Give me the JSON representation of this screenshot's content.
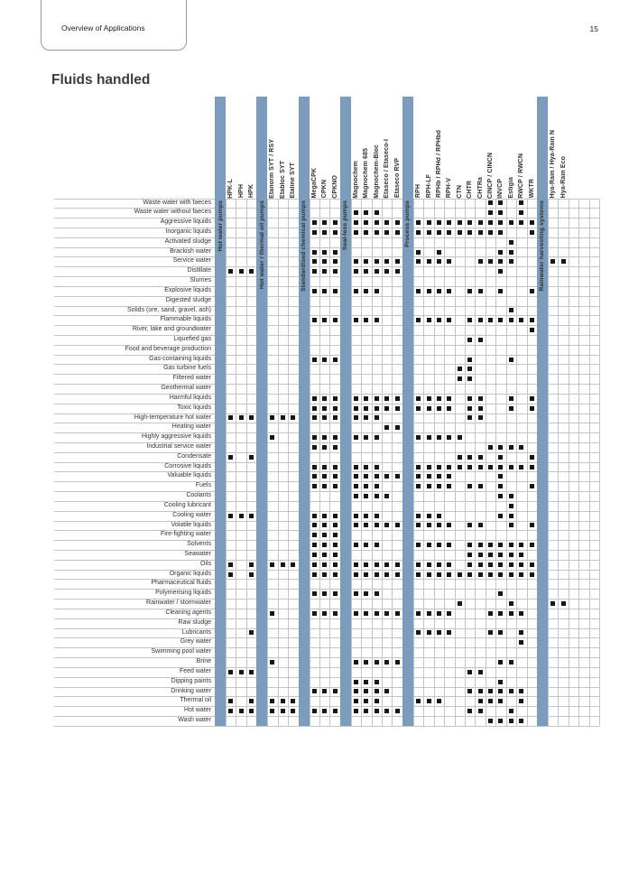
{
  "header": {
    "tab_label": "Overview of Applications",
    "page_number": "15"
  },
  "title": "Fluids handled",
  "colors": {
    "band": "#7b9cbc",
    "mark": "#161616",
    "grid": "#c4c4c4"
  },
  "table": {
    "groups": [
      {
        "label": "Hot water pumps",
        "columns": [
          "HPK-L",
          "HPH",
          "HPK"
        ]
      },
      {
        "label": "Hot water / thermal oil pumps",
        "columns": [
          "Etanorm SYT / RSY",
          "Etabloc SYT",
          "Etaline SYT"
        ]
      },
      {
        "label": "Standardised chemical pumps",
        "columns": [
          "MegaCPK",
          "CPKN",
          "CPKNO"
        ]
      },
      {
        "label": "Seal-less pumps",
        "columns": [
          "Magnochem",
          "Magnochem 685",
          "Magnochem-Bloc",
          "Etaseco / Etaseco-I",
          "Etaseco RVP"
        ]
      },
      {
        "label": "Process pumps",
        "columns": [
          "RPH",
          "RPH-LF",
          "RPHb / RPHd / RPHbd",
          "RPH-V",
          "CTN",
          "CHTR",
          "CHTRa",
          "CINCP / CINCN",
          "INVCP",
          "Estigia",
          "RWCP / RWCN",
          "WKTR"
        ]
      },
      {
        "label": "Rainwater harvesting systems",
        "columns": [
          "Hya-Rain / Hya-Rain N",
          "Hya-Rain Eco"
        ]
      }
    ],
    "trailing_empty_columns": 3,
    "rows": [
      {
        "label": "Waste water with faeces",
        "marks": [
          22,
          23,
          25
        ]
      },
      {
        "label": "Waste water without faeces",
        "marks": [
          10,
          11,
          12,
          22,
          23,
          25
        ]
      },
      {
        "label": "Aggressive liquids",
        "marks": [
          7,
          8,
          9,
          10,
          11,
          12,
          13,
          14,
          15,
          16,
          17,
          18,
          19,
          20,
          21,
          22,
          23,
          24,
          25,
          26
        ]
      },
      {
        "label": "Inorganic liquids",
        "marks": [
          7,
          8,
          9,
          10,
          11,
          12,
          13,
          14,
          15,
          16,
          17,
          18,
          19,
          20,
          21,
          22,
          23,
          26
        ]
      },
      {
        "label": "Activated sludge",
        "marks": [
          24
        ]
      },
      {
        "label": "Brackish water",
        "marks": [
          7,
          8,
          9,
          15,
          17,
          23,
          24
        ]
      },
      {
        "label": "Service water",
        "marks": [
          7,
          8,
          9,
          10,
          11,
          12,
          13,
          14,
          15,
          16,
          17,
          18,
          21,
          22,
          23,
          24,
          27,
          28
        ]
      },
      {
        "label": "Distillate",
        "marks": [
          1,
          2,
          3,
          7,
          8,
          9,
          10,
          11,
          12,
          13,
          14,
          23
        ]
      },
      {
        "label": "Slurries",
        "marks": []
      },
      {
        "label": "Explosive liquids",
        "marks": [
          7,
          8,
          9,
          10,
          11,
          12,
          15,
          16,
          17,
          18,
          20,
          21,
          23,
          26
        ]
      },
      {
        "label": "Digested sludge",
        "marks": []
      },
      {
        "label": "Solids (ore, sand, gravel, ash)",
        "marks": [
          24
        ]
      },
      {
        "label": "Flammable liquids",
        "marks": [
          7,
          8,
          9,
          10,
          11,
          12,
          15,
          16,
          17,
          18,
          20,
          21,
          22,
          23,
          24,
          25,
          26
        ]
      },
      {
        "label": "River, lake and groundwater",
        "marks": [
          26
        ]
      },
      {
        "label": "Liquefied gas",
        "marks": [
          20,
          21
        ]
      },
      {
        "label": "Food and beverage production",
        "marks": []
      },
      {
        "label": "Gas-containing liquids",
        "marks": [
          7,
          8,
          9,
          20,
          24
        ]
      },
      {
        "label": "Gas turbine fuels",
        "marks": [
          19,
          20
        ]
      },
      {
        "label": "Filtered water",
        "marks": [
          19,
          20
        ]
      },
      {
        "label": "Geothermal water",
        "marks": []
      },
      {
        "label": "Harmful liquids",
        "marks": [
          7,
          8,
          9,
          10,
          11,
          12,
          13,
          14,
          15,
          16,
          17,
          18,
          20,
          21,
          24,
          26
        ]
      },
      {
        "label": "Toxic liquids",
        "marks": [
          7,
          8,
          9,
          10,
          11,
          12,
          13,
          14,
          15,
          16,
          17,
          18,
          20,
          21,
          24,
          26
        ]
      },
      {
        "label": "High-temperature hot water",
        "marks": [
          1,
          2,
          3,
          4,
          5,
          6,
          7,
          8,
          9,
          10,
          11,
          12,
          20,
          21
        ]
      },
      {
        "label": "Heating water",
        "marks": [
          13,
          14
        ]
      },
      {
        "label": "Highly aggressive liquids",
        "marks": [
          4,
          7,
          8,
          9,
          10,
          11,
          12,
          15,
          16,
          17,
          18,
          19
        ]
      },
      {
        "label": "Industrial service water",
        "marks": [
          7,
          8,
          9,
          22,
          23,
          24,
          25
        ]
      },
      {
        "label": "Condensate",
        "marks": [
          1,
          3,
          19,
          20,
          21,
          23,
          26
        ]
      },
      {
        "label": "Corrosive liquids",
        "marks": [
          7,
          8,
          9,
          10,
          11,
          12,
          15,
          16,
          17,
          18,
          19,
          20,
          21,
          22,
          23,
          24,
          25,
          26
        ]
      },
      {
        "label": "Valuable liquids",
        "marks": [
          7,
          8,
          9,
          10,
          11,
          12,
          13,
          14,
          15,
          16,
          17,
          18,
          23
        ]
      },
      {
        "label": "Fuels",
        "marks": [
          7,
          8,
          9,
          10,
          11,
          12,
          15,
          16,
          17,
          18,
          20,
          21,
          23,
          26
        ]
      },
      {
        "label": "Coolants",
        "marks": [
          10,
          11,
          12,
          13,
          23,
          24
        ]
      },
      {
        "label": "Cooling lubricant",
        "marks": [
          24
        ]
      },
      {
        "label": "Cooling water",
        "marks": [
          1,
          2,
          3,
          7,
          8,
          9,
          10,
          11,
          12,
          15,
          16,
          17,
          23,
          24
        ]
      },
      {
        "label": "Volatile liquids",
        "marks": [
          7,
          8,
          9,
          10,
          11,
          12,
          13,
          14,
          15,
          16,
          17,
          18,
          20,
          21,
          24,
          26
        ]
      },
      {
        "label": "Fire-fighting water",
        "marks": [
          7,
          8,
          9
        ]
      },
      {
        "label": "Solvents",
        "marks": [
          7,
          8,
          9,
          10,
          11,
          12,
          15,
          16,
          17,
          18,
          20,
          21,
          22,
          23,
          24,
          25,
          26
        ]
      },
      {
        "label": "Seawater",
        "marks": [
          7,
          8,
          9,
          20,
          21,
          22,
          23,
          24,
          25
        ]
      },
      {
        "label": "Oils",
        "marks": [
          1,
          3,
          4,
          5,
          6,
          7,
          8,
          9,
          10,
          11,
          12,
          13,
          14,
          15,
          16,
          17,
          18,
          20,
          21,
          22,
          23,
          24,
          25,
          26
        ]
      },
      {
        "label": "Organic liquids",
        "marks": [
          1,
          3,
          7,
          8,
          9,
          10,
          11,
          12,
          13,
          14,
          15,
          16,
          17,
          18,
          19,
          20,
          21,
          22,
          23,
          24,
          25,
          26
        ]
      },
      {
        "label": "Pharmaceutical fluids",
        "marks": []
      },
      {
        "label": "Polymerising liquids",
        "marks": [
          7,
          8,
          9,
          10,
          11,
          12,
          23
        ]
      },
      {
        "label": "Rainwater / stormwater",
        "marks": [
          19,
          24,
          27,
          28
        ]
      },
      {
        "label": "Cleaning agents",
        "marks": [
          4,
          7,
          8,
          9,
          10,
          11,
          12,
          13,
          14,
          15,
          16,
          17,
          18,
          22,
          23,
          24,
          25
        ]
      },
      {
        "label": "Raw sludge",
        "marks": []
      },
      {
        "label": "Lubricants",
        "marks": [
          3,
          15,
          16,
          17,
          18,
          22,
          23,
          25
        ]
      },
      {
        "label": "Grey water",
        "marks": [
          25
        ]
      },
      {
        "label": "Swimming pool water",
        "marks": []
      },
      {
        "label": "Brine",
        "marks": [
          4,
          10,
          11,
          12,
          13,
          14,
          23,
          24
        ]
      },
      {
        "label": "Feed water",
        "marks": [
          1,
          2,
          3,
          20,
          21
        ]
      },
      {
        "label": "Dipping paints",
        "marks": [
          10,
          11,
          12,
          23
        ]
      },
      {
        "label": "Drinking water",
        "marks": [
          7,
          8,
          9,
          10,
          11,
          12,
          13,
          20,
          21,
          22,
          23,
          24,
          25
        ]
      },
      {
        "label": "Thermal oil",
        "marks": [
          1,
          3,
          4,
          5,
          6,
          10,
          11,
          12,
          15,
          16,
          17,
          21,
          22,
          23,
          25
        ]
      },
      {
        "label": "Hot water",
        "marks": [
          1,
          2,
          3,
          4,
          5,
          6,
          7,
          8,
          9,
          10,
          11,
          12,
          13,
          14,
          20,
          21,
          24
        ]
      },
      {
        "label": "Wash water",
        "marks": [
          22,
          23,
          24,
          25
        ]
      }
    ]
  }
}
